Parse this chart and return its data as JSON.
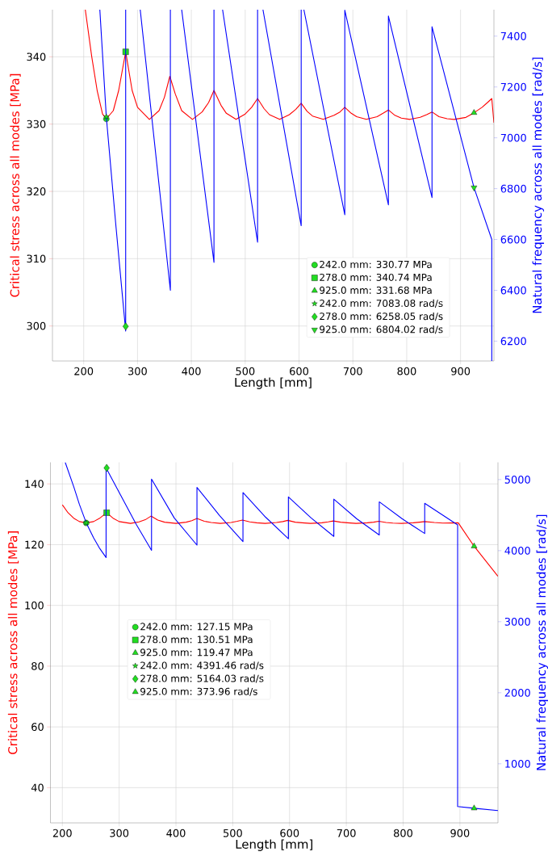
{
  "chart_data": [
    {
      "type": "line",
      "xlabel": "Length [mm]",
      "ylabel": "Critical stress across all modes [MPa]",
      "y2label": "Natural frequency across all modes [rad/s]",
      "xlim": [
        142,
        962
      ],
      "ylim": [
        294.8,
        347.0
      ],
      "y2lim": [
        6122,
        7504
      ],
      "xticks": [
        200,
        300,
        400,
        500,
        600,
        700,
        800,
        900
      ],
      "yticks": [
        300,
        310,
        320,
        330,
        340
      ],
      "y2ticks": [
        6200,
        6400,
        6600,
        6800,
        7000,
        7200,
        7400
      ],
      "grid": true,
      "legend": "bottom right",
      "series": [
        {
          "type": "line",
          "color": "#ff0000",
          "marker": "none",
          "x": [
            203,
            215,
            225,
            235,
            242,
            255,
            265,
            278,
            290,
            300,
            322,
            340,
            350,
            360,
            370,
            382,
            402,
            420,
            432,
            442,
            455,
            465,
            483,
            500,
            512,
            523,
            535,
            545,
            564,
            582,
            594,
            604,
            615,
            625,
            645,
            665,
            676,
            685,
            697,
            707,
            725,
            745,
            756,
            766,
            778,
            790,
            806,
            825,
            837,
            847,
            860,
            875,
            888,
            910,
            925,
            940,
            950,
            958,
            962
          ],
          "values": [
            347,
            340,
            335,
            331.5,
            330.77,
            332,
            335,
            340.74,
            335,
            332.5,
            330.7,
            332,
            334,
            337.1,
            334.5,
            332,
            330.7,
            331.8,
            333.2,
            335.0,
            332.8,
            331.6,
            330.7,
            331.5,
            332.5,
            333.8,
            332.3,
            331.4,
            330.7,
            331.4,
            332.2,
            333.1,
            331.9,
            331.2,
            330.7,
            331.3,
            331.8,
            332.5,
            331.6,
            331.1,
            330.7,
            331.1,
            331.6,
            332.1,
            331.3,
            330.9,
            330.7,
            331.0,
            331.4,
            331.8,
            331.1,
            330.8,
            330.7,
            331.0,
            331.68,
            332.5,
            333.2,
            333.8,
            330.2
          ]
        },
        {
          "type": "line",
          "color": "#0000ff",
          "marker": "none",
          "axis": "y2",
          "x": [
            230,
            242,
            260,
            278,
            278,
            290,
            305,
            361,
            361,
            370,
            382,
            442,
            442,
            450,
            458,
            523,
            523,
            528,
            533,
            604,
            604,
            606,
            609,
            685,
            685,
            766,
            766,
            847,
            847,
            925,
            958,
            958
          ],
          "values": [
            7504,
            7083.08,
            6650,
            6240,
            7504,
            null,
            7504,
            6400,
            7504,
            null,
            7504,
            6510,
            7504,
            null,
            7504,
            6589,
            7504,
            null,
            7504,
            6654,
            7504,
            null,
            7504,
            6697,
            7502,
            6736,
            7479,
            6765,
            7437,
            6804.02,
            6600,
            6122
          ]
        },
        {
          "type": "scatter",
          "name": "242.0 mm: 330.77 MPa",
          "color": "#22dd22",
          "marker": "circle",
          "x": [
            242
          ],
          "values": [
            330.77
          ]
        },
        {
          "type": "scatter",
          "name": "278.0 mm: 340.74 MPa",
          "color": "#22dd22",
          "marker": "square",
          "x": [
            278
          ],
          "values": [
            340.74
          ]
        },
        {
          "type": "scatter",
          "name": "925.0 mm: 331.68 MPa",
          "color": "#22dd22",
          "marker": "triangle",
          "x": [
            925
          ],
          "values": [
            331.68
          ]
        },
        {
          "type": "scatter",
          "name": "242.0 mm: 7083.08 rad/s",
          "color": "#22dd22",
          "marker": "star",
          "axis": "y2",
          "x": [
            242
          ],
          "values": [
            7083.08
          ]
        },
        {
          "type": "scatter",
          "name": "278.0 mm: 6258.05 rad/s",
          "color": "#22dd22",
          "marker": "diamond",
          "axis": "y2",
          "x": [
            278
          ],
          "values": [
            6258.05
          ]
        },
        {
          "type": "scatter",
          "name": "925.0 mm: 6804.02 rad/s",
          "color": "#22dd22",
          "marker": "triangle-down",
          "axis": "y2",
          "x": [
            925
          ],
          "values": [
            6804.02
          ]
        }
      ]
    },
    {
      "type": "line",
      "xlabel": "Length [mm]",
      "ylabel": "Critical stress across all modes [MPa]",
      "y2label": "Natural frequency across all modes [rad/s]",
      "xlim": [
        179,
        967
      ],
      "ylim": [
        28.4,
        147.1
      ],
      "y2lim": [
        168,
        5243
      ],
      "xticks": [
        200,
        300,
        400,
        500,
        600,
        700,
        800,
        900
      ],
      "yticks": [
        40,
        60,
        80,
        100,
        120,
        140
      ],
      "y2ticks": [
        1000,
        2000,
        3000,
        4000,
        5000
      ],
      "grid": true,
      "legend": "left",
      "series": [
        {
          "type": "line",
          "color": "#ff0000",
          "marker": "none",
          "x": [
            200,
            210,
            220,
            230,
            242,
            255,
            265,
            278,
            290,
            300,
            320,
            335,
            346,
            356,
            368,
            380,
            400,
            418,
            428,
            437,
            450,
            462,
            478,
            497,
            508,
            517,
            530,
            542,
            557,
            577,
            588,
            597,
            610,
            622,
            637,
            657,
            668,
            677,
            690,
            702,
            717,
            737,
            748,
            757,
            770,
            782,
            797,
            818,
            829,
            838,
            855,
            870,
            897,
            925,
            967
          ],
          "values": [
            133.1,
            130.5,
            128.7,
            127.6,
            127.15,
            127.6,
            128.6,
            130.51,
            128.6,
            127.6,
            127.0,
            127.5,
            128.2,
            129.4,
            128.1,
            127.4,
            127.0,
            127.4,
            127.9,
            128.6,
            127.7,
            127.3,
            127.0,
            127.3,
            127.7,
            128.1,
            127.5,
            127.2,
            127.0,
            127.3,
            127.6,
            128.0,
            127.4,
            127.2,
            127.0,
            127.2,
            127.5,
            127.8,
            127.4,
            127.2,
            127.0,
            127.2,
            127.4,
            127.7,
            127.3,
            127.1,
            127.0,
            127.2,
            127.4,
            127.6,
            127.3,
            127.1,
            127.2,
            119.47,
            109.6
          ]
        },
        {
          "type": "line",
          "color": "#0000ff",
          "marker": "none",
          "axis": "y2",
          "x": [
            205,
            220,
            230,
            242,
            255,
            265,
            277,
            277,
            300,
            330,
            357,
            357,
            397,
            437,
            437,
            477,
            518,
            518,
            558,
            598,
            598,
            638,
            678,
            678,
            718,
            758,
            758,
            798,
            838,
            838,
            896,
            896,
            925,
            967
          ],
          "values": [
            5243,
            4900,
            4650,
            4391.46,
            4180,
            4040,
            3903,
            5164.03,
            4820,
            4370,
            4005,
            5008,
            4460,
            4078,
            4890,
            4492,
            4127,
            4817,
            4470,
            4168,
            4756,
            4460,
            4200,
            4724,
            4450,
            4220,
            4687,
            4450,
            4241,
            4667,
            4362,
            398,
            373.96,
            341
          ]
        },
        {
          "type": "scatter",
          "name": "242.0 mm: 127.15 MPa",
          "color": "#22dd22",
          "marker": "circle",
          "x": [
            242
          ],
          "values": [
            127.15
          ]
        },
        {
          "type": "scatter",
          "name": "278.0 mm: 130.51 MPa",
          "color": "#22dd22",
          "marker": "square",
          "x": [
            278
          ],
          "values": [
            130.51
          ]
        },
        {
          "type": "scatter",
          "name": "925.0 mm: 119.47 MPa",
          "color": "#22dd22",
          "marker": "triangle",
          "x": [
            925
          ],
          "values": [
            119.47
          ]
        },
        {
          "type": "scatter",
          "name": "242.0 mm: 4391.46 rad/s",
          "color": "#22dd22",
          "marker": "star",
          "axis": "y2",
          "x": [
            242
          ],
          "values": [
            4391.46
          ]
        },
        {
          "type": "scatter",
          "name": "278.0 mm: 5164.03 rad/s",
          "color": "#22dd22",
          "marker": "diamond",
          "axis": "y2",
          "x": [
            278
          ],
          "values": [
            5164.03
          ]
        },
        {
          "type": "scatter",
          "name": "925.0 mm: 373.96 rad/s",
          "color": "#22dd22",
          "marker": "triangle",
          "axis": "y2",
          "x": [
            925
          ],
          "values": [
            373.96
          ]
        }
      ]
    }
  ]
}
